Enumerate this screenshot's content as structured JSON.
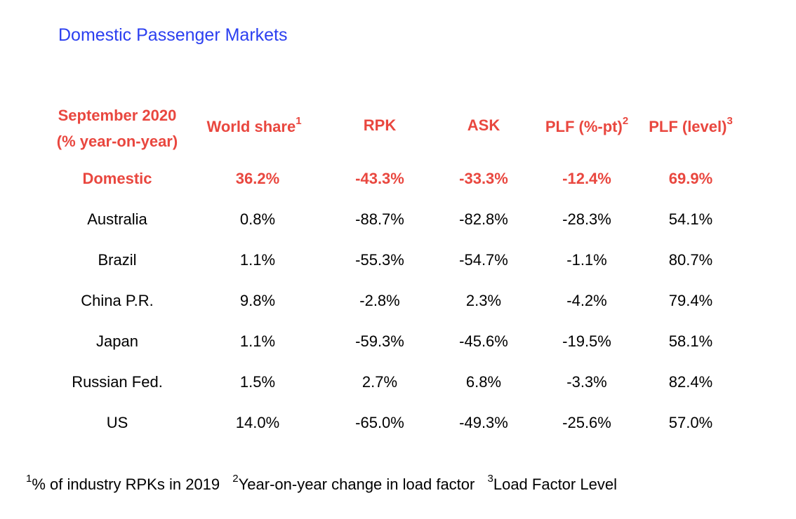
{
  "title": "Domestic Passenger Markets",
  "header": {
    "corner_line1": "September 2020",
    "corner_line2": "(% year-on-year)",
    "columns": [
      {
        "label": "World share",
        "sup": "1"
      },
      {
        "label": "RPK",
        "sup": ""
      },
      {
        "label": "ASK",
        "sup": ""
      },
      {
        "label": "PLF (%-pt)",
        "sup": "2"
      },
      {
        "label": "PLF (level)",
        "sup": "3"
      }
    ]
  },
  "rows": [
    {
      "name": "Domestic",
      "values": [
        "36.2%",
        "-43.3%",
        "-33.3%",
        "-12.4%",
        "69.9%"
      ]
    },
    {
      "name": "Australia",
      "values": [
        "0.8%",
        "-88.7%",
        "-82.8%",
        "-28.3%",
        "54.1%"
      ]
    },
    {
      "name": "Brazil",
      "values": [
        "1.1%",
        "-55.3%",
        "-54.7%",
        "-1.1%",
        "80.7%"
      ]
    },
    {
      "name": "China P.R.",
      "values": [
        "9.8%",
        "-2.8%",
        "2.3%",
        "-4.2%",
        "79.4%"
      ]
    },
    {
      "name": "Japan",
      "values": [
        "1.1%",
        "-59.3%",
        "-45.6%",
        "-19.5%",
        "58.1%"
      ]
    },
    {
      "name": "Russian Fed.",
      "values": [
        "1.5%",
        "2.7%",
        "6.8%",
        "-3.3%",
        "82.4%"
      ]
    },
    {
      "name": "US",
      "values": [
        "14.0%",
        "-65.0%",
        "-49.3%",
        "-25.6%",
        "57.0%"
      ]
    }
  ],
  "footnotes": [
    {
      "sup": "1",
      "text": "% of industry RPKs in 2019"
    },
    {
      "sup": "2",
      "text": "Year-on-year change in load factor"
    },
    {
      "sup": "3",
      "text": "Load Factor Level"
    }
  ],
  "colors": {
    "title": "#2b3ff0",
    "header": "#e9473f",
    "text": "#000000"
  }
}
